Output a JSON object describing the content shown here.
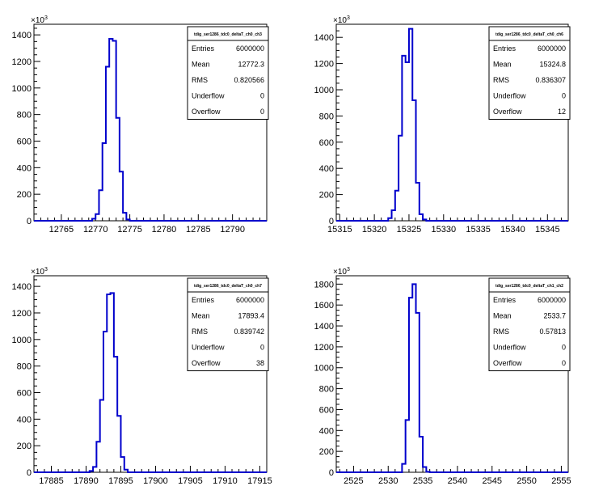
{
  "chart_data": [
    {
      "type": "histogram",
      "title": "tdig_ser1286_tdc0_deltaT_ch0_ch3",
      "xlim": [
        12761,
        12795
      ],
      "xticks": [
        12765,
        12770,
        12775,
        12780,
        12785,
        12790
      ],
      "ylim": [
        0,
        1480
      ],
      "yticks": [
        0,
        200,
        400,
        600,
        800,
        1000,
        1200,
        1400
      ],
      "y_multiplier": "×10^3",
      "bin_width": 0.5,
      "bins": [
        12769.5,
        12770,
        12770.5,
        12771,
        12771.5,
        12772,
        12772.5,
        12773,
        12773.5,
        12774,
        12774.5,
        12775
      ],
      "values": [
        15,
        50,
        230,
        585,
        1160,
        1370,
        1355,
        775,
        370,
        60,
        10,
        0
      ],
      "stats": [
        {
          "key": "Entries",
          "value": "6000000"
        },
        {
          "key": "Mean",
          "value": "12772.3"
        },
        {
          "key": "RMS",
          "value": "0.820566"
        },
        {
          "key": "Underflow",
          "value": "0"
        },
        {
          "key": "Overflow",
          "value": "0"
        }
      ]
    },
    {
      "type": "histogram",
      "title": "tdig_ser1286_tdc0_deltaT_ch0_ch6",
      "xlim": [
        15314.5,
        15348
      ],
      "xticks": [
        15315,
        15320,
        15325,
        15330,
        15335,
        15340,
        15345
      ],
      "ylim": [
        0,
        1500
      ],
      "yticks": [
        0,
        200,
        400,
        600,
        800,
        1000,
        1200,
        1400
      ],
      "y_multiplier": "×10^3",
      "bin_width": 0.5,
      "bins": [
        15322,
        15322.5,
        15323,
        15323.5,
        15324,
        15324.5,
        15325,
        15325.5,
        15326,
        15326.5,
        15327
      ],
      "values": [
        20,
        80,
        230,
        650,
        1260,
        1210,
        1465,
        920,
        290,
        50,
        10
      ],
      "stats": [
        {
          "key": "Entries",
          "value": "6000000"
        },
        {
          "key": "Mean",
          "value": "15324.8"
        },
        {
          "key": "RMS",
          "value": "0.836307"
        },
        {
          "key": "Underflow",
          "value": "0"
        },
        {
          "key": "Overflow",
          "value": "12"
        }
      ]
    },
    {
      "type": "histogram",
      "title": "tdig_ser1286_tdc0_deltaT_ch0_ch7",
      "xlim": [
        17882.5,
        17916
      ],
      "xticks": [
        17885,
        17890,
        17895,
        17900,
        17905,
        17910,
        17915
      ],
      "ylim": [
        0,
        1480
      ],
      "yticks": [
        0,
        200,
        400,
        600,
        800,
        1000,
        1200,
        1400
      ],
      "y_multiplier": "×10^3",
      "bin_width": 0.5,
      "bins": [
        17890.5,
        17891,
        17891.5,
        17892,
        17892.5,
        17893,
        17893.5,
        17894,
        17894.5,
        17895,
        17895.5
      ],
      "values": [
        10,
        40,
        230,
        545,
        1060,
        1340,
        1350,
        870,
        425,
        115,
        20
      ],
      "stats": [
        {
          "key": "Entries",
          "value": "6000000"
        },
        {
          "key": "Mean",
          "value": "17893.4"
        },
        {
          "key": "RMS",
          "value": "0.839742"
        },
        {
          "key": "Underflow",
          "value": "0"
        },
        {
          "key": "Overflow",
          "value": "38"
        }
      ]
    },
    {
      "type": "histogram",
      "title": "tdig_ser1286_tdc0_deltaT_ch1_ch2",
      "xlim": [
        2522.5,
        2556
      ],
      "xticks": [
        2525,
        2530,
        2535,
        2540,
        2545,
        2550,
        2555
      ],
      "ylim": [
        0,
        1880
      ],
      "yticks": [
        0,
        200,
        400,
        600,
        800,
        1000,
        1200,
        1400,
        1600,
        1800
      ],
      "y_multiplier": "×10^3",
      "bin_width": 0.5,
      "bins": [
        2532,
        2532.5,
        2533,
        2533.5,
        2534,
        2534.5,
        2535,
        2535.5
      ],
      "values": [
        80,
        500,
        1670,
        1800,
        1525,
        340,
        50,
        5
      ],
      "stats": [
        {
          "key": "Entries",
          "value": "6000000"
        },
        {
          "key": "Mean",
          "value": "2533.7"
        },
        {
          "key": "RMS",
          "value": "0.57813"
        },
        {
          "key": "Underflow",
          "value": "0"
        },
        {
          "key": "Overflow",
          "value": "0"
        }
      ]
    }
  ]
}
